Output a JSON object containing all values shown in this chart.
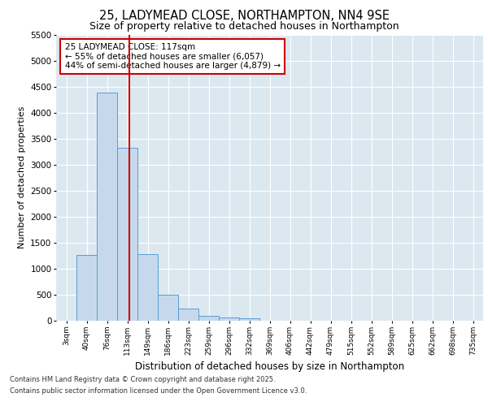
{
  "title1": "25, LADYMEAD CLOSE, NORTHAMPTON, NN4 9SE",
  "title2": "Size of property relative to detached houses in Northampton",
  "xlabel": "Distribution of detached houses by size in Northampton",
  "ylabel": "Number of detached properties",
  "categories": [
    "3sqm",
    "40sqm",
    "76sqm",
    "113sqm",
    "149sqm",
    "186sqm",
    "223sqm",
    "259sqm",
    "296sqm",
    "332sqm",
    "369sqm",
    "406sqm",
    "442sqm",
    "479sqm",
    "515sqm",
    "552sqm",
    "589sqm",
    "625sqm",
    "662sqm",
    "698sqm",
    "735sqm"
  ],
  "values": [
    0,
    1270,
    4380,
    3320,
    1280,
    500,
    240,
    100,
    60,
    50,
    0,
    0,
    0,
    0,
    0,
    0,
    0,
    0,
    0,
    0,
    0
  ],
  "bar_color": "#c6d9ec",
  "bar_edge_color": "#5b9bd5",
  "red_line_x": 3.1,
  "annotation_text": "25 LADYMEAD CLOSE: 117sqm\n← 55% of detached houses are smaller (6,057)\n44% of semi-detached houses are larger (4,879) →",
  "annotation_box_color": "#ffffff",
  "annotation_box_edge_color": "#cc0000",
  "ylim": [
    0,
    5500
  ],
  "yticks": [
    0,
    500,
    1000,
    1500,
    2000,
    2500,
    3000,
    3500,
    4000,
    4500,
    5000,
    5500
  ],
  "plot_bg_color": "#dce8f0",
  "grid_color": "#ffffff",
  "footer1": "Contains HM Land Registry data © Crown copyright and database right 2025.",
  "footer2": "Contains public sector information licensed under the Open Government Licence v3.0."
}
